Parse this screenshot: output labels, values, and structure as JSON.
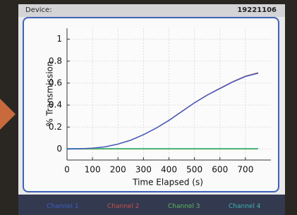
{
  "header": {
    "label": "Device:",
    "device_id": "19221106"
  },
  "chart_data": {
    "type": "line",
    "x_label": "Time Elapsed (s)",
    "y_label": "% Transmission",
    "x": [
      0,
      50,
      100,
      150,
      200,
      250,
      300,
      350,
      400,
      450,
      500,
      550,
      600,
      650,
      700,
      750
    ],
    "series": [
      {
        "name": "Channel 1",
        "color": "#3b5fc9",
        "values": [
          0,
          0.002,
          0.008,
          0.02,
          0.045,
          0.08,
          0.13,
          0.19,
          0.26,
          0.34,
          0.42,
          0.49,
          0.55,
          0.61,
          0.66,
          0.69
        ]
      },
      {
        "name": "Channel 2",
        "color": "#c9504a",
        "values": [
          0,
          0.002,
          0.008,
          0.021,
          0.046,
          0.081,
          0.131,
          0.191,
          0.262,
          0.342,
          0.422,
          0.492,
          0.553,
          0.613,
          0.663,
          0.695
        ]
      },
      {
        "name": "Channel 3",
        "color": "#5cb85c",
        "values": [
          0,
          0,
          0,
          0,
          0,
          0,
          0,
          0,
          0,
          0,
          0,
          0,
          0,
          0,
          0,
          0
        ]
      },
      {
        "name": "Channel 4",
        "color": "#3fb2b0",
        "values": [
          0.005,
          0.005,
          0.005,
          0.005,
          0.005,
          0.005,
          0.005,
          0.005,
          0.005,
          0.005,
          0.005,
          0.005,
          0.005,
          0.005,
          0.005,
          0.005
        ]
      }
    ],
    "xlim": [
      0,
      800
    ],
    "xticks": [
      0,
      100,
      200,
      300,
      400,
      500,
      600,
      700
    ],
    "ylim": [
      -0.1,
      1.1
    ],
    "yticks": [
      0,
      0.2,
      0.4,
      0.6,
      0.8,
      1
    ],
    "grid": true
  }
}
